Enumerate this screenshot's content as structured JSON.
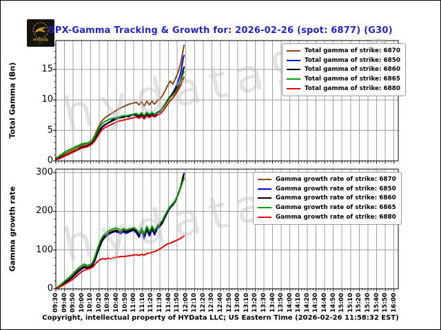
{
  "title": "SPX-Gamma Tracking & Growth for: 2026-02-26 (spot: 6877) (G30)",
  "title_color": "#2222CC",
  "logo": {
    "text": "HYDaTa"
  },
  "watermark": "hydata9.co",
  "footer": "Copyright, intellectual property of HYData LLC; US Eastern Time (2026-02-26 11:58:32 EST)",
  "colors": {
    "grid": "#9e9e9e",
    "spine": "#000000"
  },
  "x_axis": {
    "start": "09:30",
    "end": "16:00",
    "minutes_total": 395,
    "tick_labels": [
      "09:30",
      "09:40",
      "09:50",
      "10:00",
      "10:10",
      "10:20",
      "10:30",
      "10:40",
      "10:50",
      "11:00",
      "11:10",
      "11:20",
      "11:30",
      "11:40",
      "11:50",
      "12:00",
      "12:10",
      "12:20",
      "12:30",
      "12:40",
      "12:50",
      "13:00",
      "13:10",
      "13:20",
      "13:30",
      "13:40",
      "13:50",
      "14:00",
      "14:10",
      "14:20",
      "14:30",
      "14:40",
      "14:50",
      "15:00",
      "15:10",
      "15:20",
      "15:30",
      "15:40",
      "15:50",
      "16:00"
    ]
  },
  "chart_data": [
    {
      "type": "line",
      "name": "total-gamma",
      "ylabel": "Total Gamma (Bn)",
      "ylim": [
        0,
        19.75
      ],
      "y_ticks": [
        0,
        5,
        10,
        15
      ],
      "y_minor_step": 1,
      "grid": true,
      "legend_position": "upper right",
      "x_minutes": [
        0,
        3,
        6,
        9,
        12,
        15,
        18,
        21,
        24,
        27,
        30,
        33,
        36,
        39,
        42,
        45,
        48,
        51,
        54,
        57,
        60,
        63,
        66,
        69,
        72,
        75,
        78,
        81,
        84,
        87,
        90,
        93,
        96,
        99,
        102,
        105,
        108,
        111,
        114,
        117,
        120,
        123,
        126,
        129,
        132,
        135,
        138,
        141,
        144,
        147,
        148
      ],
      "series": [
        {
          "label": "Total gamma of strike: 6870",
          "color": "#8B4513",
          "values": [
            0.3,
            0.5,
            0.8,
            1.0,
            1.3,
            1.5,
            1.7,
            1.9,
            2.2,
            2.4,
            2.6,
            2.7,
            2.8,
            3.0,
            3.4,
            4.2,
            5.2,
            6.1,
            6.7,
            7.1,
            7.4,
            7.7,
            7.9,
            8.2,
            8.5,
            8.7,
            8.9,
            9.1,
            9.3,
            9.4,
            9.5,
            9.6,
            9.2,
            9.7,
            9.0,
            9.8,
            9.2,
            9.8,
            9.3,
            9.9,
            10.1,
            10.7,
            11.5,
            12.4,
            13.1,
            12.6,
            13.5,
            14.5,
            16.0,
            18.3,
            19.0
          ]
        },
        {
          "label": "Total gamma of strike: 6850",
          "color": "#0000DD",
          "values": [
            0.2,
            0.3,
            0.5,
            0.7,
            0.9,
            1.1,
            1.3,
            1.5,
            1.7,
            2.0,
            2.2,
            2.3,
            2.4,
            2.6,
            2.9,
            3.4,
            4.2,
            5.0,
            5.6,
            5.9,
            6.2,
            6.5,
            6.8,
            7.0,
            7.2,
            7.3,
            7.1,
            7.4,
            7.2,
            7.5,
            7.6,
            7.4,
            7.0,
            7.7,
            6.9,
            7.8,
            7.1,
            7.8,
            7.2,
            7.9,
            8.1,
            8.6,
            9.2,
            9.9,
            10.5,
            11.2,
            12.0,
            13.0,
            14.4,
            16.9,
            17.3
          ]
        },
        {
          "label": "Total gamma of strike: 6860",
          "color": "#000000",
          "values": [
            0.2,
            0.4,
            0.6,
            0.8,
            1.0,
            1.2,
            1.4,
            1.6,
            1.8,
            2.1,
            2.3,
            2.4,
            2.5,
            2.7,
            3.0,
            3.6,
            4.4,
            5.2,
            5.7,
            6.0,
            6.2,
            6.4,
            6.6,
            6.8,
            7.0,
            7.1,
            7.2,
            7.3,
            7.4,
            7.5,
            7.6,
            7.7,
            7.3,
            7.8,
            7.2,
            7.9,
            7.4,
            7.9,
            7.5,
            8.0,
            8.2,
            8.7,
            9.3,
            10.0,
            10.6,
            11.0,
            11.6,
            12.3,
            13.2,
            15.0,
            15.4
          ]
        },
        {
          "label": "Total gamma of strike: 6865",
          "color": "#009E00",
          "values": [
            0.4,
            0.7,
            1.0,
            1.3,
            1.6,
            1.8,
            2.0,
            2.2,
            2.4,
            2.6,
            2.8,
            2.9,
            2.9,
            3.1,
            3.4,
            4.0,
            4.8,
            5.7,
            6.2,
            6.5,
            6.7,
            6.9,
            7.0,
            7.1,
            7.2,
            7.3,
            7.4,
            7.4,
            7.5,
            7.6,
            7.7,
            7.8,
            7.5,
            7.9,
            7.4,
            8.0,
            7.6,
            8.0,
            7.6,
            8.0,
            8.2,
            8.6,
            9.2,
            9.8,
            10.4,
            10.8,
            11.3,
            12.0,
            13.0,
            14.4,
            14.6
          ]
        },
        {
          "label": "Total gamma of strike: 6880",
          "color": "#E60000",
          "values": [
            0.2,
            0.3,
            0.5,
            0.7,
            0.9,
            1.1,
            1.3,
            1.5,
            1.7,
            1.9,
            2.1,
            2.2,
            2.3,
            2.5,
            2.8,
            3.3,
            4.0,
            4.7,
            5.2,
            5.5,
            5.7,
            5.9,
            6.1,
            6.3,
            6.5,
            6.6,
            6.7,
            6.8,
            6.9,
            7.0,
            7.1,
            7.2,
            7.0,
            7.3,
            6.9,
            7.4,
            7.1,
            7.4,
            7.2,
            7.5,
            7.7,
            8.1,
            8.7,
            9.3,
            9.9,
            10.3,
            10.9,
            11.6,
            12.4,
            13.5,
            13.7
          ]
        }
      ]
    },
    {
      "type": "line",
      "name": "gamma-growth-rate",
      "ylabel": "Gamma growth rate",
      "ylim": [
        0,
        309
      ],
      "y_ticks": [
        0,
        100,
        200,
        300
      ],
      "y_minor_step": 20,
      "grid": true,
      "legend_position": "upper right",
      "x_minutes": [
        0,
        3,
        6,
        9,
        12,
        15,
        18,
        21,
        24,
        27,
        30,
        33,
        36,
        39,
        42,
        45,
        48,
        51,
        54,
        57,
        60,
        63,
        66,
        69,
        72,
        75,
        78,
        81,
        84,
        87,
        90,
        93,
        96,
        99,
        102,
        105,
        108,
        111,
        114,
        117,
        120,
        123,
        126,
        129,
        132,
        135,
        138,
        141,
        144,
        147,
        148
      ],
      "series": [
        {
          "label": "Gamma growth rate of strike: 6870",
          "color": "#8B4513",
          "values": [
            0,
            5,
            9,
            14,
            19,
            24,
            30,
            37,
            44,
            50,
            55,
            59,
            56,
            58,
            62,
            78,
            98,
            117,
            130,
            138,
            143,
            147,
            150,
            152,
            150,
            148,
            152,
            149,
            151,
            153,
            155,
            150,
            140,
            155,
            138,
            158,
            143,
            158,
            146,
            160,
            164,
            174,
            188,
            202,
            212,
            216,
            226,
            242,
            260,
            284,
            288
          ]
        },
        {
          "label": "Gamma growth rate of strike: 6850",
          "color": "#0000DD",
          "values": [
            0,
            4,
            7,
            12,
            17,
            22,
            27,
            33,
            40,
            46,
            51,
            55,
            52,
            54,
            58,
            72,
            92,
            110,
            125,
            133,
            139,
            143,
            146,
            148,
            145,
            142,
            147,
            143,
            146,
            149,
            151,
            144,
            133,
            150,
            130,
            152,
            136,
            153,
            139,
            155,
            160,
            170,
            184,
            198,
            209,
            216,
            227,
            244,
            262,
            293,
            298
          ]
        },
        {
          "label": "Gamma growth rate of strike: 6860",
          "color": "#000000",
          "values": [
            0,
            4,
            8,
            13,
            18,
            23,
            28,
            35,
            42,
            48,
            53,
            57,
            54,
            56,
            60,
            75,
            95,
            114,
            128,
            136,
            141,
            145,
            148,
            150,
            148,
            146,
            150,
            147,
            149,
            151,
            153,
            148,
            138,
            153,
            136,
            156,
            141,
            157,
            144,
            159,
            163,
            172,
            186,
            200,
            211,
            218,
            228,
            245,
            263,
            291,
            295
          ]
        },
        {
          "label": "Gamma growth rate of strike: 6865",
          "color": "#009E00",
          "values": [
            0,
            6,
            11,
            17,
            23,
            29,
            35,
            42,
            49,
            55,
            60,
            64,
            60,
            62,
            66,
            82,
            103,
            122,
            135,
            143,
            148,
            152,
            155,
            157,
            155,
            152,
            156,
            152,
            154,
            156,
            158,
            153,
            144,
            158,
            142,
            161,
            147,
            162,
            149,
            164,
            168,
            177,
            190,
            203,
            213,
            220,
            229,
            244,
            261,
            280,
            284
          ]
        },
        {
          "label": "Gamma growth rate of strike: 6880",
          "color": "#E60000",
          "values": [
            0,
            3,
            6,
            10,
            14,
            18,
            22,
            27,
            33,
            39,
            44,
            48,
            50,
            52,
            55,
            62,
            70,
            75,
            78,
            76,
            79,
            77,
            80,
            81,
            82,
            83,
            83,
            84,
            85,
            86,
            87,
            88,
            86,
            89,
            87,
            91,
            92,
            94,
            96,
            99,
            103,
            107,
            112,
            116,
            118,
            121,
            124,
            127,
            130,
            135,
            137
          ]
        }
      ]
    }
  ]
}
